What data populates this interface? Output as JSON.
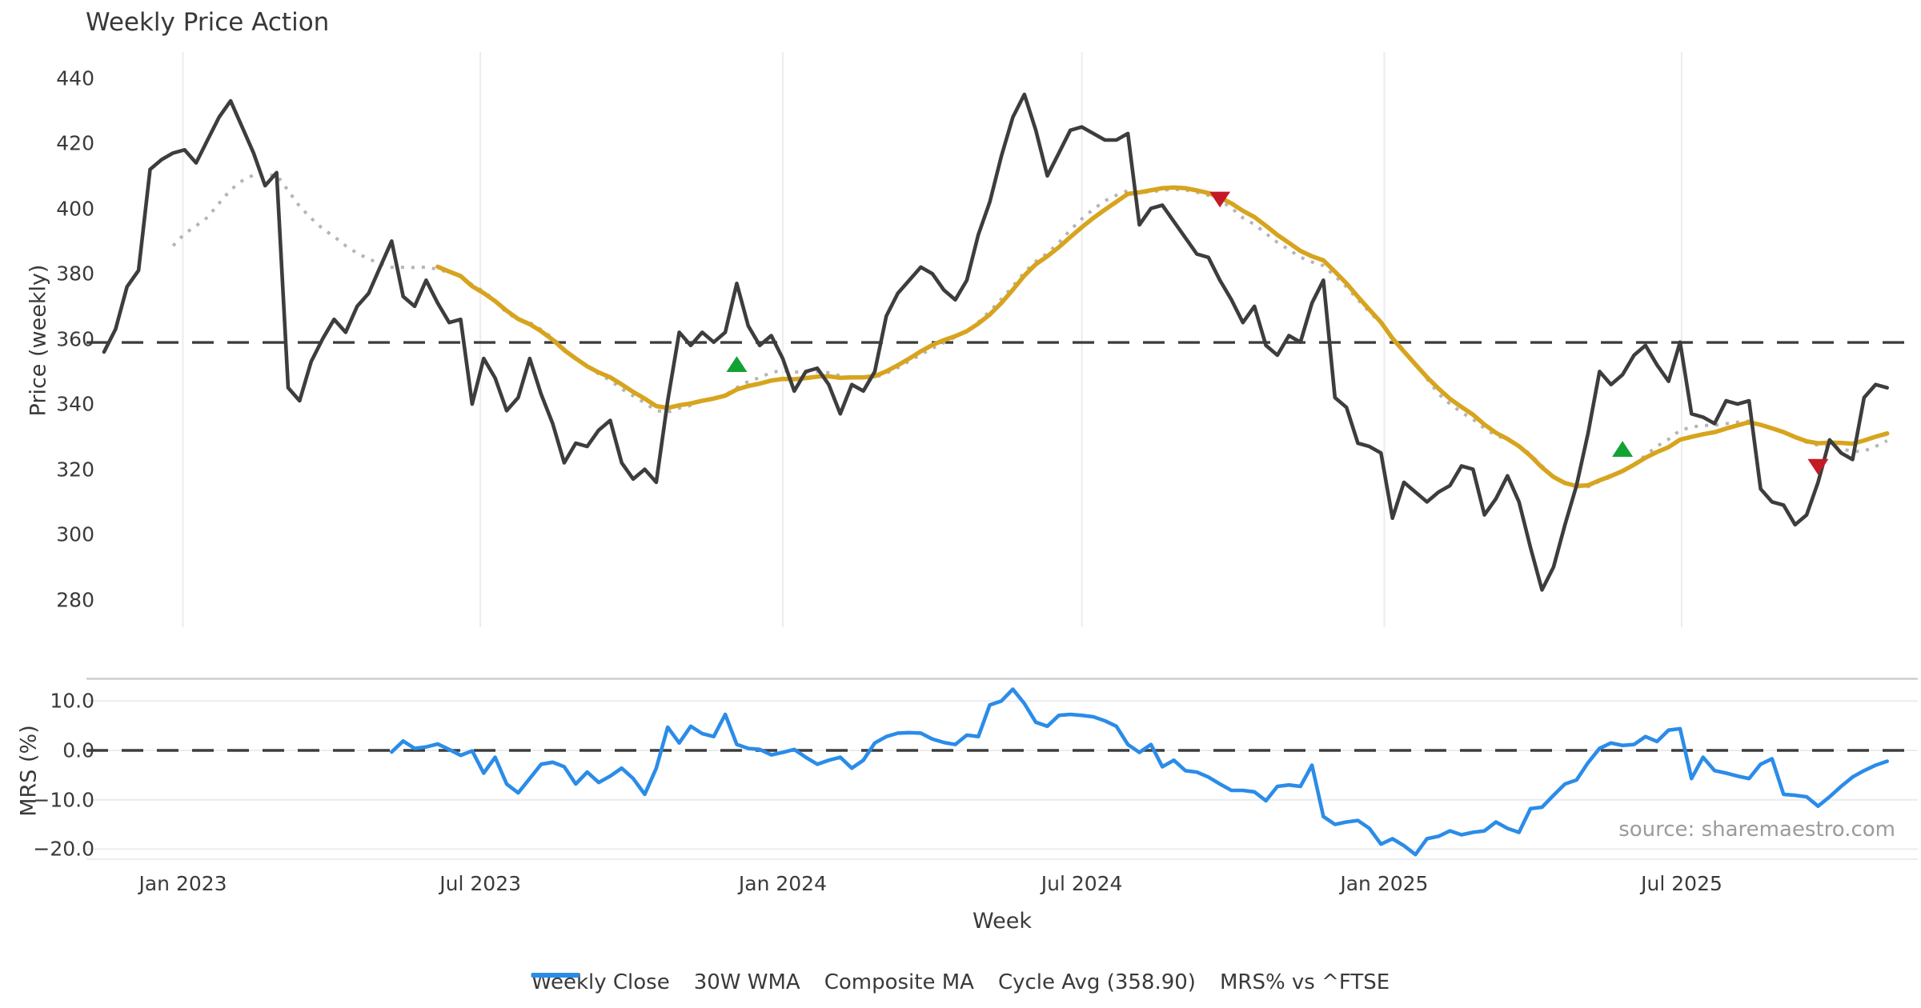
{
  "chart_data": {
    "type": "line",
    "title": "Weekly Price Action",
    "source_note": "source: sharemaestro.com",
    "x_axis": {
      "label": "Week",
      "ticks": [
        {
          "week": 6.857,
          "label": "Jan 2023"
        },
        {
          "week": 32.714,
          "label": "Jul 2023"
        },
        {
          "week": 59.0,
          "label": "Jan 2024"
        },
        {
          "week": 85.0,
          "label": "Jul 2024"
        },
        {
          "week": 111.286,
          "label": "Jan 2025"
        },
        {
          "week": 137.143,
          "label": "Jul 2025"
        }
      ]
    },
    "price_panel": {
      "ylabel": "Price (weekly)",
      "ylim": [
        272,
        448
      ],
      "yticks": [
        {
          "v": 280,
          "label": "280"
        },
        {
          "v": 300,
          "label": "300"
        },
        {
          "v": 320,
          "label": "320"
        },
        {
          "v": 340,
          "label": "340"
        },
        {
          "v": 360,
          "label": "360"
        },
        {
          "v": 380,
          "label": "380"
        },
        {
          "v": 400,
          "label": "400"
        },
        {
          "v": 420,
          "label": "420"
        },
        {
          "v": 440,
          "label": "440"
        }
      ],
      "grid": "vertical"
    },
    "mrs_panel": {
      "ylabel": "MRS (%)",
      "ylim": [
        -22,
        14.5
      ],
      "yticks": [
        {
          "v": 10,
          "label": "10.0"
        },
        {
          "v": 0,
          "label": "0.0"
        },
        {
          "v": -10,
          "label": "−10.0"
        },
        {
          "v": -20,
          "label": "−20.0"
        }
      ],
      "gridline_values": [
        10,
        0,
        -10,
        -20
      ],
      "zero_line": 0,
      "grid": "horizontal"
    },
    "cycle_avg": {
      "value": 358.9,
      "label": "Cycle Avg (358.90)"
    },
    "series": {
      "weekly_close": {
        "name": "Weekly Close",
        "start_week": 0,
        "values": [
          356,
          363,
          376,
          381,
          412,
          415,
          417,
          418,
          414,
          421,
          428,
          433,
          425,
          417,
          407,
          411,
          345,
          341,
          353,
          360,
          366,
          362,
          370,
          374,
          382,
          390,
          373,
          370,
          378,
          371,
          365,
          366,
          340,
          354,
          348,
          338,
          342,
          354,
          343,
          334,
          322,
          328,
          327,
          332,
          335,
          322,
          317,
          320,
          316,
          341,
          362,
          358,
          362,
          359,
          362,
          377,
          364,
          358,
          361,
          354,
          344,
          350,
          351,
          346,
          337,
          346,
          344,
          350,
          367,
          374,
          378,
          382,
          380,
          375,
          372,
          378,
          392,
          402,
          416,
          428,
          435,
          424,
          410,
          417,
          424,
          425,
          423,
          421,
          421,
          423,
          395,
          400,
          401,
          396,
          391,
          386,
          385,
          378,
          372,
          365,
          370,
          358,
          355,
          361,
          359,
          371,
          378,
          342,
          339,
          328,
          327,
          325,
          305,
          316,
          313,
          310,
          313,
          315,
          321,
          320,
          306,
          311,
          318,
          310,
          296,
          283,
          290,
          303,
          315,
          331,
          350,
          346,
          349,
          355,
          358,
          352,
          347,
          359,
          337,
          336,
          334,
          341,
          340,
          341,
          314,
          310,
          309,
          303,
          306,
          316,
          329,
          325,
          323,
          342,
          346,
          345
        ]
      },
      "wma_30w": {
        "name": "30W WMA",
        "derived": "weighted moving average of weekly_close",
        "window": 30
      },
      "composite_ma": {
        "name": "Composite MA",
        "derived": "mean of 10/20/30-week SMAs of weekly_close",
        "sma_windows": [
          10,
          20,
          30
        ],
        "start_week": 6
      },
      "mrs_pct": {
        "name": "MRS% vs ^FTSE",
        "start_week": 25,
        "values": [
          -0.3,
          1.9,
          0.4,
          0.7,
          1.3,
          0.2,
          -1.0,
          -0.1,
          -4.6,
          -1.4,
          -6.8,
          -8.6,
          -5.7,
          -2.8,
          -2.4,
          -3.3,
          -6.8,
          -4.4,
          -6.5,
          -5.2,
          -3.6,
          -5.7,
          -8.9,
          -3.6,
          4.7,
          1.5,
          4.9,
          3.4,
          2.8,
          7.3,
          1.2,
          0.4,
          0.2,
          -0.9,
          -0.4,
          0.2,
          -1.4,
          -2.8,
          -2.0,
          -1.4,
          -3.6,
          -2.0,
          1.5,
          2.8,
          3.5,
          3.6,
          3.5,
          2.3,
          1.6,
          1.2,
          3.1,
          2.8,
          9.2,
          10.0,
          12.4,
          9.5,
          5.7,
          4.9,
          7.1,
          7.3,
          7.1,
          6.8,
          6.0,
          4.9,
          1.2,
          -0.4,
          1.2,
          -3.3,
          -2.0,
          -4.1,
          -4.4,
          -5.4,
          -6.8,
          -8.1,
          -8.1,
          -8.4,
          -10.2,
          -7.3,
          -7.0,
          -7.3,
          -3.0,
          -13.4,
          -15.0,
          -14.5,
          -14.2,
          -15.8,
          -19.0,
          -17.9,
          -19.3,
          -21.1,
          -17.9,
          -17.4,
          -16.3,
          -17.1,
          -16.6,
          -16.3,
          -14.5,
          -15.8,
          -16.6,
          -11.8,
          -11.5,
          -9.1,
          -6.8,
          -6.0,
          -2.5,
          0.4,
          1.5,
          1.0,
          1.2,
          2.8,
          1.8,
          4.1,
          4.4,
          -5.7,
          -1.4,
          -4.1,
          -4.6,
          -5.2,
          -5.7,
          -2.8,
          -1.7,
          -8.9,
          -9.1,
          -9.4,
          -11.3,
          -9.4,
          -7.3,
          -5.4,
          -4.1,
          -3.0,
          -2.2
        ]
      }
    },
    "signals": [
      {
        "week": 55,
        "price": 352,
        "type": "buy"
      },
      {
        "week": 97,
        "price": 403,
        "type": "sell"
      },
      {
        "week": 132,
        "price": 326,
        "type": "buy"
      },
      {
        "week": 149,
        "price": 321,
        "type": "sell"
      }
    ],
    "legend": [
      {
        "label": "Weekly Close",
        "style": "solid",
        "color": "#3d3d3d"
      },
      {
        "label": "30W WMA",
        "style": "solid",
        "color": "#d7a41e"
      },
      {
        "label": "Composite MA",
        "style": "dotted",
        "color": "#b5b5b5"
      },
      {
        "label": "Cycle Avg (358.90)",
        "style": "dashed",
        "color": "#3d3d3d"
      },
      {
        "label": "MRS% vs ^FTSE",
        "style": "solid",
        "color": "#2b8ce8"
      }
    ],
    "colors": {
      "close": "#3d3d3d",
      "wma": "#d7a41e",
      "composite": "#b5b5b5",
      "cycle": "#3d3d3d",
      "mrs": "#2b8ce8",
      "buy": "#12a233",
      "sell": "#c41a26",
      "grid": "#ececef",
      "spine": "#cdcdd2",
      "text": "#3a3a3a",
      "muted": "#9b9b9b"
    }
  }
}
